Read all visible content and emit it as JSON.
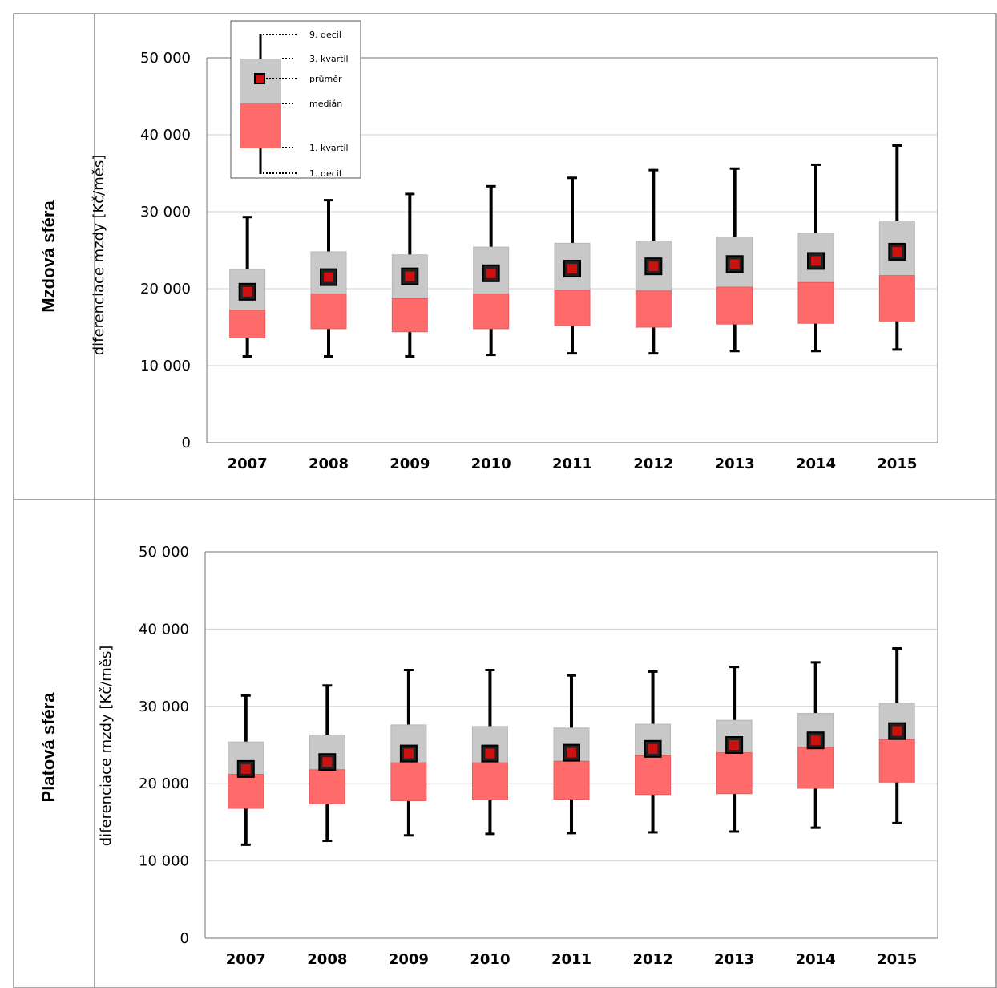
{
  "rows": [
    {
      "label": "Mzdová sféra"
    },
    {
      "label": "Platová sféra"
    }
  ],
  "legend": {
    "decile9": "9. decil",
    "quartile3": "3. kvartil",
    "mean": "průměr",
    "median": "medián",
    "quartile1": "1. kvartil",
    "decile1": "1. decil"
  },
  "colors": {
    "upper_box": "#c8c8c8",
    "lower_box": "#ff6b6b",
    "whisker": "#000000",
    "mean_marker": "#cc1111",
    "grid": "#d0d0d0",
    "frame": "#a0a0a0"
  },
  "chart_data": [
    {
      "type": "box",
      "row_label": "Mzdová sféra",
      "ylabel": "diferenciace mzdy [Kč/měs]",
      "ylim": [
        0,
        50000
      ],
      "yticks": [
        0,
        10000,
        20000,
        30000,
        40000,
        50000
      ],
      "ytick_labels": [
        "0",
        "10 000",
        "20 000",
        "30 000",
        "40 000",
        "50 000"
      ],
      "grid": true,
      "legend_position": "top-left",
      "categories": [
        "2007",
        "2008",
        "2009",
        "2010",
        "2011",
        "2012",
        "2013",
        "2014",
        "2015"
      ],
      "decile1": [
        11200,
        11200,
        11200,
        11400,
        11600,
        11600,
        11900,
        11900,
        12100
      ],
      "quartile1": [
        13600,
        14800,
        14400,
        14800,
        15200,
        15000,
        15400,
        15500,
        15800
      ],
      "median": [
        17200,
        19300,
        18700,
        19300,
        19800,
        19700,
        20200,
        20800,
        21700
      ],
      "mean": [
        19600,
        21500,
        21600,
        22000,
        22600,
        22900,
        23200,
        23600,
        24800
      ],
      "quartile3": [
        22500,
        24800,
        24400,
        25400,
        25900,
        26200,
        26700,
        27200,
        28800
      ],
      "decile9": [
        29300,
        31500,
        32300,
        33300,
        34400,
        35400,
        35600,
        36100,
        38600
      ]
    },
    {
      "type": "box",
      "row_label": "Platová sféra",
      "ylabel": "diferenciace mzdy [Kč/měs]",
      "ylim": [
        0,
        50000
      ],
      "yticks": [
        0,
        10000,
        20000,
        30000,
        40000,
        50000
      ],
      "ytick_labels": [
        "0",
        "10 000",
        "20 000",
        "30 000",
        "40 000",
        "50 000"
      ],
      "grid": true,
      "categories": [
        "2007",
        "2008",
        "2009",
        "2010",
        "2011",
        "2012",
        "2013",
        "2014",
        "2015"
      ],
      "decile1": [
        12100,
        12600,
        13300,
        13500,
        13600,
        13700,
        13800,
        14300,
        14900
      ],
      "quartile1": [
        16800,
        17400,
        17800,
        17900,
        18000,
        18600,
        18700,
        19400,
        20200
      ],
      "median": [
        21200,
        21800,
        22700,
        22700,
        22900,
        23600,
        24000,
        24700,
        25700
      ],
      "mean": [
        21900,
        22800,
        23900,
        23900,
        24000,
        24500,
        25000,
        25600,
        26800
      ],
      "quartile3": [
        25400,
        26300,
        27600,
        27400,
        27200,
        27700,
        28200,
        29100,
        30400
      ],
      "decile9": [
        31400,
        32700,
        34700,
        34700,
        34000,
        34500,
        35100,
        35700,
        37500
      ]
    }
  ]
}
